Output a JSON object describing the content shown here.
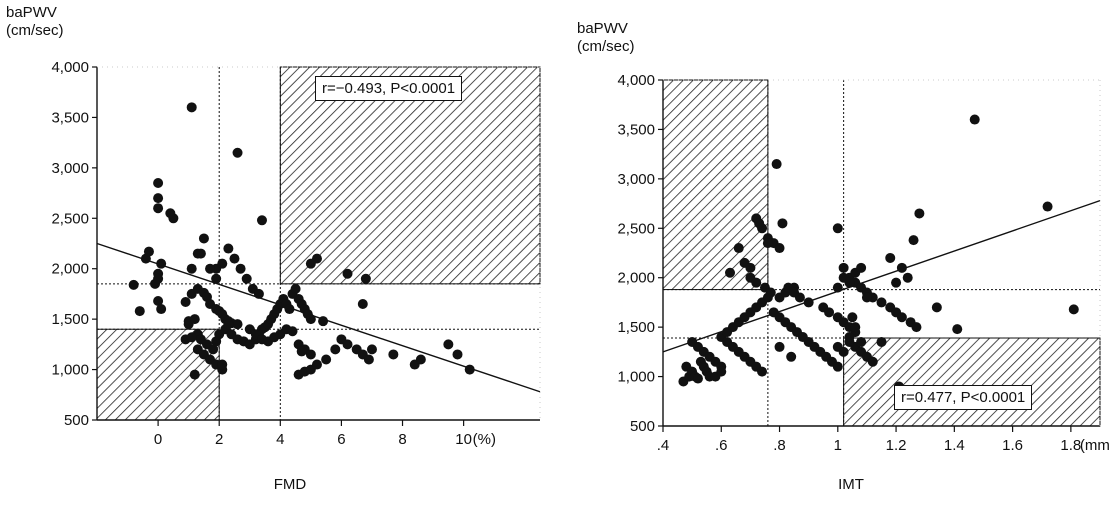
{
  "chart_data": [
    {
      "type": "scatter",
      "ylabel": "baPWV",
      "yunit": "(cm/sec)",
      "xlabel": "FMD",
      "xunit": "(%)",
      "annotation": "r=−0.493, P<0.0001",
      "xlim": [
        -2,
        12.5
      ],
      "ylim": [
        500,
        4000
      ],
      "xticks": [
        0,
        2,
        4,
        6,
        8,
        10
      ],
      "xtick_labels": [
        "0",
        "2",
        "4",
        "6",
        "8",
        "10"
      ],
      "yticks": [
        500,
        1000,
        1500,
        2000,
        2500,
        3000,
        3500,
        4000
      ],
      "ytick_labels": [
        "500",
        "1,000",
        "1,500",
        "2,000",
        "2,500",
        "3,000",
        "3,500",
        "4,000"
      ],
      "vlines": [
        2,
        4
      ],
      "hlines": [
        1400,
        1850
      ],
      "shaded_regions": [
        {
          "x": [
            4,
            12.5
          ],
          "y": [
            1850,
            4000
          ]
        },
        {
          "x": [
            -2,
            2
          ],
          "y": [
            500,
            1400
          ]
        }
      ],
      "regression": {
        "x": [
          -2,
          12.5
        ],
        "y": [
          2250,
          780
        ]
      },
      "x": [
        1.1,
        -0.8,
        0.0,
        0.0,
        0.0,
        -0.4,
        0.1,
        0.5,
        0.4,
        1.1,
        1.4,
        1.9,
        2.6,
        3.4,
        -0.1,
        -0.3,
        0.0,
        0.0,
        -0.6,
        0.0,
        0.1,
        0.9,
        1.1,
        1.3,
        1.5,
        1.6,
        1.7,
        1.9,
        2.0,
        2.1,
        2.2,
        2.3,
        2.4,
        2.6,
        1.0,
        1.0,
        1.2,
        1.3,
        1.4,
        1.6,
        1.8,
        1.9,
        2.0,
        2.2,
        2.3,
        2.4,
        2.6,
        2.8,
        3.0,
        3.2,
        3.3,
        3.4,
        3.5,
        3.6,
        3.7,
        3.8,
        3.9,
        4.0,
        4.1,
        4.2,
        4.3,
        4.4,
        4.5,
        4.6,
        4.7,
        4.8,
        4.9,
        5.0,
        3.0,
        3.2,
        3.4,
        3.6,
        3.8,
        4.0,
        4.2,
        4.4,
        4.6,
        4.8,
        5.0,
        0.9,
        1.1,
        1.3,
        1.5,
        1.7,
        1.9,
        2.1,
        1.3,
        1.5,
        1.7,
        1.9,
        2.1,
        2.3,
        2.5,
        2.7,
        2.9,
        3.1,
        3.3,
        4.6,
        4.8,
        5.0,
        5.2,
        5.5,
        5.8,
        6.0,
        6.2,
        6.5,
        6.7,
        6.9,
        7.0,
        6.7,
        6.8,
        6.2,
        5.2,
        5.0,
        5.4,
        7.7,
        8.4,
        8.6,
        9.5,
        9.8,
        10.2,
        4.7,
        1.2,
        2.1
      ],
      "y": [
        3600,
        1840,
        2850,
        2700,
        2600,
        2100,
        2050,
        2500,
        2550,
        2000,
        2150,
        2000,
        3150,
        2480,
        1850,
        2170,
        1950,
        1900,
        1580,
        1680,
        1600,
        1670,
        1750,
        1800,
        1760,
        1720,
        1650,
        1600,
        1580,
        1550,
        1500,
        1480,
        1460,
        1450,
        1450,
        1480,
        1500,
        1350,
        1300,
        1250,
        1200,
        1280,
        1350,
        1400,
        1450,
        1350,
        1300,
        1280,
        1250,
        1300,
        1350,
        1400,
        1420,
        1450,
        1500,
        1550,
        1600,
        1650,
        1700,
        1650,
        1600,
        1750,
        1800,
        1700,
        1650,
        1600,
        1550,
        1500,
        1400,
        1350,
        1300,
        1280,
        1320,
        1350,
        1400,
        1380,
        1250,
        1200,
        1150,
        1300,
        1320,
        1200,
        1150,
        1100,
        1050,
        1000,
        2150,
        2300,
        2000,
        1900,
        2050,
        2200,
        2100,
        2000,
        1900,
        1800,
        1750,
        950,
        980,
        1000,
        1050,
        1100,
        1200,
        1300,
        1250,
        1200,
        1150,
        1100,
        1200,
        1650,
        1900,
        1950,
        2100,
        2050,
        1480,
        1150,
        1050,
        1100,
        1250,
        1150,
        1000,
        1180,
        950,
        1050
      ],
      "marker_color": "#111111",
      "hatch_color": "#222222"
    },
    {
      "type": "scatter",
      "ylabel": "baPWV",
      "yunit": "(cm/sec)",
      "xlabel": "IMT",
      "xunit": "(mm)",
      "annotation": "r=0.477, P<0.0001",
      "xlim": [
        0.4,
        1.9
      ],
      "ylim": [
        500,
        4000
      ],
      "xticks": [
        0.4,
        0.6,
        0.8,
        1.0,
        1.2,
        1.4,
        1.6,
        1.8
      ],
      "xtick_labels": [
        ".4",
        ".6",
        ".8",
        "1",
        "1.2",
        "1.4",
        "1.6",
        "1.8"
      ],
      "yticks": [
        500,
        1000,
        1500,
        2000,
        2500,
        3000,
        3500,
        4000
      ],
      "ytick_labels": [
        "500",
        "1,000",
        "1,500",
        "2,000",
        "2,500",
        "3,000",
        "3,500",
        "4,000"
      ],
      "vlines": [
        0.76,
        1.02
      ],
      "hlines": [
        1390,
        1880
      ],
      "shaded_regions": [
        {
          "x": [
            0.4,
            0.76
          ],
          "y": [
            1880,
            4000
          ]
        },
        {
          "x": [
            1.02,
            1.9
          ],
          "y": [
            500,
            1390
          ]
        }
      ],
      "regression": {
        "x": [
          0.4,
          1.9
        ],
        "y": [
          1250,
          2780
        ]
      },
      "x": [
        0.47,
        0.48,
        0.49,
        0.5,
        0.51,
        0.52,
        0.53,
        0.54,
        0.55,
        0.56,
        0.5,
        0.52,
        0.54,
        0.56,
        0.58,
        0.6,
        0.6,
        0.62,
        0.64,
        0.66,
        0.68,
        0.7,
        0.72,
        0.74,
        0.62,
        0.64,
        0.66,
        0.68,
        0.7,
        0.72,
        0.74,
        0.76,
        0.78,
        0.8,
        0.82,
        0.84,
        0.86,
        0.88,
        0.9,
        0.92,
        0.94,
        0.96,
        0.98,
        1.0,
        0.72,
        0.74,
        0.76,
        0.78,
        0.8,
        0.7,
        0.72,
        0.75,
        0.77,
        0.8,
        0.82,
        0.85,
        0.68,
        0.7,
        0.66,
        0.63,
        0.73,
        0.76,
        0.79,
        0.81,
        0.83,
        0.85,
        0.87,
        0.9,
        0.95,
        0.97,
        1.0,
        1.02,
        1.04,
        1.06,
        1.0,
        1.02,
        1.04,
        1.06,
        1.08,
        1.1,
        1.12,
        1.15,
        1.18,
        1.2,
        1.22,
        1.25,
        1.27,
        1.04,
        1.06,
        1.08,
        1.1,
        1.12,
        1.0,
        1.02,
        1.04,
        1.06,
        1.08,
        1.1,
        1.0,
        1.02,
        1.04,
        1.06,
        1.08,
        1.2,
        1.22,
        1.24,
        1.26,
        1.28,
        1.34,
        1.41,
        1.47,
        1.72,
        1.81,
        1.21,
        0.8,
        0.58,
        0.6,
        0.84,
        1.05,
        1.18,
        1.15
      ],
      "y": [
        950,
        1100,
        1000,
        1050,
        1000,
        980,
        1150,
        1100,
        1050,
        1000,
        1350,
        1300,
        1250,
        1200,
        1150,
        1100,
        1400,
        1350,
        1300,
        1250,
        1200,
        1150,
        1100,
        1050,
        1450,
        1500,
        1550,
        1600,
        1650,
        1700,
        1750,
        1800,
        1650,
        1600,
        1550,
        1500,
        1450,
        1400,
        1350,
        1300,
        1250,
        1200,
        1150,
        1100,
        2600,
        2500,
        2400,
        2350,
        2300,
        2000,
        1950,
        1900,
        1850,
        1800,
        1850,
        1900,
        2150,
        2100,
        2300,
        2050,
        2550,
        2350,
        3150,
        2550,
        1900,
        1850,
        1800,
        1750,
        1700,
        1650,
        1600,
        1550,
        1500,
        1450,
        2500,
        2100,
        2000,
        1950,
        1900,
        1850,
        1800,
        1750,
        1700,
        1650,
        1600,
        1550,
        1500,
        1350,
        1300,
        1250,
        1200,
        1150,
        1900,
        2000,
        1950,
        2050,
        2100,
        1800,
        1300,
        1250,
        1400,
        1500,
        1350,
        1950,
        2100,
        2000,
        2380,
        2650,
        1700,
        1480,
        3600,
        2720,
        1680,
        900,
        1300,
        1000,
        1050,
        1200,
        1600,
        2200,
        1350
      ],
      "marker_color": "#111111",
      "hatch_color": "#222222"
    }
  ]
}
